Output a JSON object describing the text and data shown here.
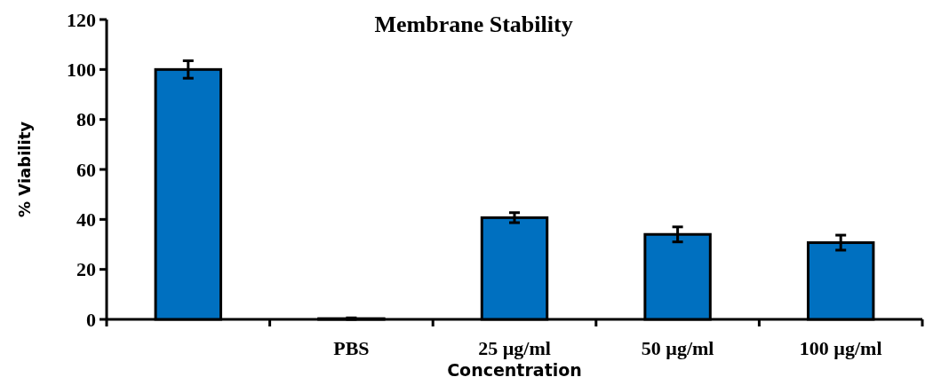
{
  "chart_data": {
    "type": "bar",
    "title": "Membrane Stability",
    "xlabel": "Concentration",
    "ylabel": "% Viability",
    "categories": [
      null,
      "PBS",
      "25 µg/ml",
      "50 µg/ml",
      "100 µg/ml"
    ],
    "values": [
      100,
      0.3,
      40.7,
      34,
      30.7
    ],
    "errors": [
      3.5,
      0.3,
      2,
      3,
      3
    ],
    "color": "#0070c0",
    "ylim": [
      0,
      120
    ],
    "yticks": [
      0,
      20,
      40,
      60,
      80,
      100,
      120
    ],
    "grid": false
  }
}
